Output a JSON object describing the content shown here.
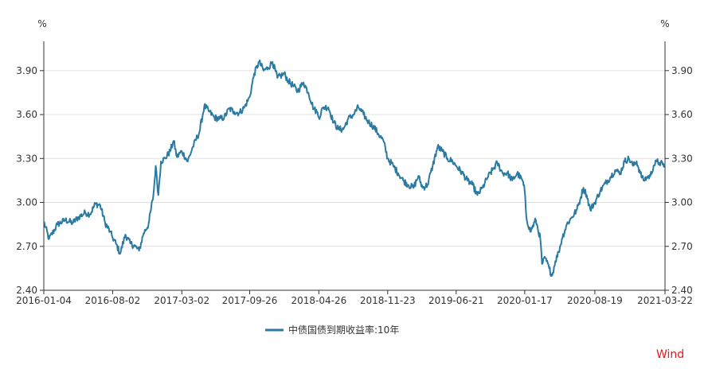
{
  "chart_data": {
    "type": "line",
    "unit_left": "%",
    "unit_right": "%",
    "x_ticks": [
      "2016-01-04",
      "2016-08-02",
      "2017-03-02",
      "2017-09-26",
      "2018-04-26",
      "2018-11-23",
      "2019-06-21",
      "2020-01-17",
      "2020-08-19",
      "2021-03-22"
    ],
    "y_ticks": [
      "2.40",
      "2.70",
      "3.00",
      "3.30",
      "3.60",
      "3.90"
    ],
    "ylim": [
      2.4,
      4.1
    ],
    "grid": true,
    "legend": "bottom-center",
    "watermark": "Wind",
    "series": [
      {
        "name": "中债国债到期收益率:10年",
        "color": "#2a7aa1",
        "x": [
          "2016-01-04",
          "2016-01-20",
          "2016-02-15",
          "2016-03-10",
          "2016-04-01",
          "2016-04-20",
          "2016-05-10",
          "2016-05-25",
          "2016-06-10",
          "2016-06-25",
          "2016-07-10",
          "2016-07-25",
          "2016-08-02",
          "2016-08-12",
          "2016-08-25",
          "2016-09-10",
          "2016-09-25",
          "2016-10-10",
          "2016-10-22",
          "2016-11-05",
          "2016-11-20",
          "2016-12-05",
          "2016-12-12",
          "2016-12-20",
          "2016-12-28",
          "2017-01-10",
          "2017-01-25",
          "2017-02-05",
          "2017-02-15",
          "2017-03-02",
          "2017-03-20",
          "2017-04-05",
          "2017-04-25",
          "2017-05-10",
          "2017-05-25",
          "2017-06-10",
          "2017-06-25",
          "2017-07-10",
          "2017-07-25",
          "2017-08-10",
          "2017-08-25",
          "2017-09-10",
          "2017-09-26",
          "2017-10-10",
          "2017-10-25",
          "2017-11-08",
          "2017-11-22",
          "2017-12-05",
          "2017-12-20",
          "2018-01-10",
          "2018-01-22",
          "2018-02-05",
          "2018-02-20",
          "2018-03-10",
          "2018-03-25",
          "2018-04-10",
          "2018-04-20",
          "2018-04-26",
          "2018-05-10",
          "2018-05-25",
          "2018-06-10",
          "2018-06-25",
          "2018-07-10",
          "2018-07-25",
          "2018-08-10",
          "2018-08-25",
          "2018-09-10",
          "2018-09-25",
          "2018-10-10",
          "2018-10-25",
          "2018-11-10",
          "2018-11-23",
          "2018-12-10",
          "2018-12-25",
          "2019-01-10",
          "2019-01-25",
          "2019-02-10",
          "2019-02-25",
          "2019-03-10",
          "2019-03-25",
          "2019-04-10",
          "2019-04-25",
          "2019-05-10",
          "2019-05-25",
          "2019-06-10",
          "2019-06-21",
          "2019-07-10",
          "2019-07-25",
          "2019-08-10",
          "2019-08-25",
          "2019-09-10",
          "2019-09-25",
          "2019-10-10",
          "2019-10-25",
          "2019-11-10",
          "2019-11-25",
          "2019-12-10",
          "2019-12-25",
          "2020-01-10",
          "2020-01-17",
          "2020-01-22",
          "2020-02-03",
          "2020-02-20",
          "2020-03-05",
          "2020-03-10",
          "2020-03-20",
          "2020-04-01",
          "2020-04-10",
          "2020-04-20",
          "2020-04-30",
          "2020-05-10",
          "2020-05-25",
          "2020-06-10",
          "2020-06-25",
          "2020-07-05",
          "2020-07-15",
          "2020-07-25",
          "2020-08-05",
          "2020-08-19",
          "2020-09-05",
          "2020-09-20",
          "2020-10-05",
          "2020-10-20",
          "2020-11-05",
          "2020-11-18",
          "2020-12-01",
          "2020-12-15",
          "2020-12-25",
          "2021-01-05",
          "2021-01-15",
          "2021-01-25",
          "2021-02-05",
          "2021-02-15",
          "2021-02-25",
          "2021-03-05",
          "2021-03-15",
          "2021-03-22"
        ],
        "values": [
          2.87,
          2.75,
          2.85,
          2.88,
          2.86,
          2.9,
          2.93,
          2.92,
          2.99,
          2.98,
          2.86,
          2.8,
          2.76,
          2.72,
          2.65,
          2.78,
          2.72,
          2.7,
          2.67,
          2.79,
          2.85,
          3.05,
          3.25,
          3.05,
          3.28,
          3.3,
          3.35,
          3.42,
          3.31,
          3.35,
          3.28,
          3.38,
          3.48,
          3.66,
          3.62,
          3.58,
          3.57,
          3.58,
          3.64,
          3.62,
          3.61,
          3.65,
          3.72,
          3.88,
          3.96,
          3.9,
          3.92,
          3.96,
          3.85,
          3.88,
          3.83,
          3.8,
          3.76,
          3.82,
          3.75,
          3.64,
          3.62,
          3.58,
          3.65,
          3.65,
          3.55,
          3.5,
          3.5,
          3.57,
          3.6,
          3.65,
          3.6,
          3.55,
          3.52,
          3.47,
          3.42,
          3.3,
          3.25,
          3.2,
          3.15,
          3.12,
          3.1,
          3.18,
          3.1,
          3.12,
          3.25,
          3.38,
          3.35,
          3.3,
          3.28,
          3.25,
          3.2,
          3.15,
          3.12,
          3.05,
          3.1,
          3.17,
          3.22,
          3.27,
          3.2,
          3.2,
          3.15,
          3.2,
          3.15,
          3.08,
          2.9,
          2.8,
          2.88,
          2.75,
          2.58,
          2.62,
          2.55,
          2.5,
          2.6,
          2.66,
          2.75,
          2.85,
          2.9,
          2.95,
          3.02,
          3.1,
          3.05,
          2.95,
          3.0,
          3.08,
          3.13,
          3.17,
          3.22,
          3.2,
          3.28,
          3.3,
          3.25,
          3.28,
          3.2,
          3.15,
          3.17,
          3.18,
          3.25,
          3.28,
          3.27,
          3.26,
          3.25
        ]
      }
    ]
  }
}
